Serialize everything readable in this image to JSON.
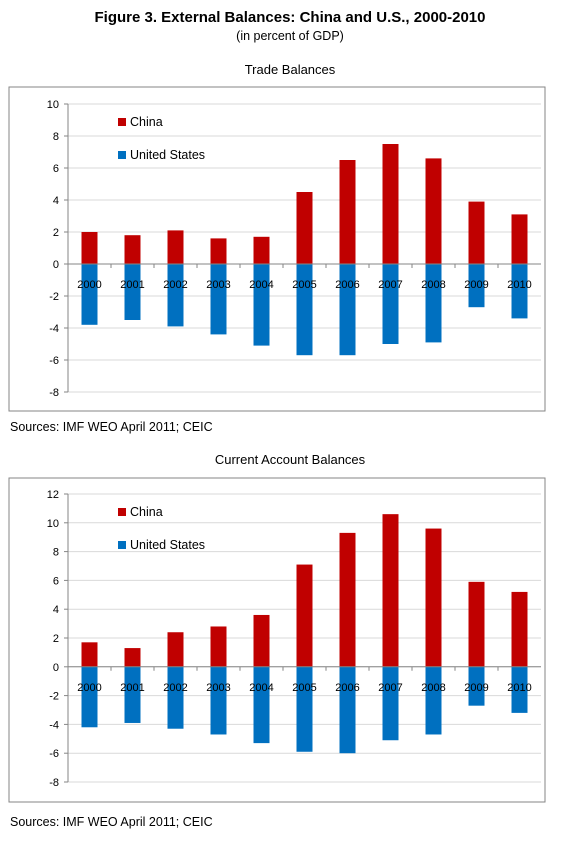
{
  "figure": {
    "title": "Figure 3. External Balances: China and U.S., 2000-2010",
    "subtitle": "(in percent of GDP)"
  },
  "colors": {
    "china": "#c00000",
    "us": "#0070c0",
    "grid": "#d9d9d9",
    "axis": "#868686"
  },
  "chart_data": [
    {
      "type": "bar",
      "title": "Trade Balances",
      "categories": [
        "2000",
        "2001",
        "2002",
        "2003",
        "2004",
        "2005",
        "2006",
        "2007",
        "2008",
        "2009",
        "2010"
      ],
      "series": [
        {
          "name": "China",
          "values": [
            2.0,
            1.8,
            2.1,
            1.6,
            1.7,
            4.5,
            6.5,
            7.5,
            6.6,
            3.9,
            3.1
          ]
        },
        {
          "name": "United States",
          "values": [
            -3.8,
            -3.5,
            -3.9,
            -4.4,
            -5.1,
            -5.7,
            -5.7,
            -5.0,
            -4.9,
            -2.7,
            -3.4
          ]
        }
      ],
      "ylim": [
        -8,
        10
      ],
      "yticks": [
        -8,
        -6,
        -4,
        -2,
        0,
        2,
        4,
        6,
        8,
        10
      ],
      "grid": true,
      "legend": "top-left",
      "source": "Sources: IMF WEO April 2011; CEIC"
    },
    {
      "type": "bar",
      "title": "Current Account Balances",
      "categories": [
        "2000",
        "2001",
        "2002",
        "2003",
        "2004",
        "2005",
        "2006",
        "2007",
        "2008",
        "2009",
        "2010"
      ],
      "series": [
        {
          "name": "China",
          "values": [
            1.7,
            1.3,
            2.4,
            2.8,
            3.6,
            7.1,
            9.3,
            10.6,
            9.6,
            5.9,
            5.2
          ]
        },
        {
          "name": "United States",
          "values": [
            -4.2,
            -3.9,
            -4.3,
            -4.7,
            -5.3,
            -5.9,
            -6.0,
            -5.1,
            -4.7,
            -2.7,
            -3.2
          ]
        }
      ],
      "ylim": [
        -8,
        12
      ],
      "yticks": [
        -8,
        -6,
        -4,
        -2,
        0,
        2,
        4,
        6,
        8,
        10,
        12
      ],
      "grid": true,
      "legend": "top-left",
      "source": "Sources: IMF WEO April 2011; CEIC"
    }
  ]
}
